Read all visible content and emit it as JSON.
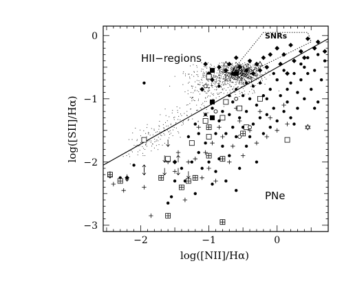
{
  "chart_data": {
    "type": "scatter",
    "title": "",
    "xlabel": "log([NII]/Hα)",
    "ylabel": "log([SII]/Hα)",
    "xlim": [
      -2.55,
      0.75
    ],
    "ylim": [
      -3.1,
      0.15
    ],
    "xticks": [
      -2,
      -1,
      0
    ],
    "xtick_labels": [
      "−2",
      "−1",
      "0"
    ],
    "yticks": [
      0,
      -1,
      -2,
      -3
    ],
    "ytick_labels": [
      "0",
      "−1",
      "−2",
      "−3"
    ],
    "grid": false,
    "legend": "none",
    "annotations": {
      "hii_label": "HII−regions",
      "snr_label": "SNRs",
      "pne_label": "PNe"
    },
    "dividing_line": {
      "x": [
        -2.55,
        0.75
      ],
      "y": [
        -2.05,
        -0.05
      ]
    },
    "snr_box": [
      [
        -0.65,
        -0.55
      ],
      [
        -0.2,
        0.05
      ],
      [
        0.45,
        0.05
      ],
      [
        0.5,
        -0.1
      ],
      [
        -0.35,
        -0.55
      ]
    ],
    "hii_cloud": {
      "description_points": 1400,
      "center": [
        -0.55,
        -0.58
      ],
      "main_extent": [
        -1.1,
        0.0
      ],
      "tail_to": [
        -2.1,
        -1.9
      ]
    },
    "series": [
      {
        "name": "",
        "marker": "filled-circle",
        "points": [
          [
            -2.3,
            -2.25
          ],
          [
            -2.1,
            -2.05
          ],
          [
            -1.95,
            -0.75
          ],
          [
            -1.55,
            -2.55
          ],
          [
            -1.6,
            -2.65
          ],
          [
            -1.4,
            -2.4
          ],
          [
            -1.35,
            -2.3
          ],
          [
            -1.25,
            -2.0
          ],
          [
            -1.15,
            -1.85
          ],
          [
            -1.1,
            -2.1
          ],
          [
            -1.0,
            -1.45
          ],
          [
            -1.0,
            -2.0
          ],
          [
            -0.9,
            -1.55
          ],
          [
            -0.85,
            -1.35
          ],
          [
            -0.8,
            -1.75
          ],
          [
            -0.75,
            -1.55
          ],
          [
            -0.7,
            -1.25
          ],
          [
            -0.7,
            -1.9
          ],
          [
            -0.65,
            -1.05
          ],
          [
            -0.6,
            -1.6
          ],
          [
            -0.55,
            -1.3
          ],
          [
            -0.55,
            -2.1
          ],
          [
            -0.5,
            -0.95
          ],
          [
            -0.5,
            -1.45
          ],
          [
            -0.45,
            -1.75
          ],
          [
            -0.45,
            -1.2
          ],
          [
            -0.4,
            -1.0
          ],
          [
            -0.4,
            -1.6
          ],
          [
            -0.35,
            -0.8
          ],
          [
            -0.35,
            -1.4
          ],
          [
            -0.3,
            -1.1
          ],
          [
            -0.3,
            -2.0
          ],
          [
            -0.25,
            -1.3
          ],
          [
            -0.25,
            -0.75
          ],
          [
            -0.2,
            -1.55
          ],
          [
            -0.15,
            -1.0
          ],
          [
            -0.15,
            -1.25
          ],
          [
            -0.1,
            -0.85
          ],
          [
            -0.1,
            -1.45
          ],
          [
            -0.05,
            -1.15
          ],
          [
            0.0,
            -0.7
          ],
          [
            0.0,
            -1.35
          ],
          [
            0.05,
            -0.95
          ],
          [
            0.1,
            -1.2
          ],
          [
            0.1,
            -0.55
          ],
          [
            0.15,
            -1.05
          ],
          [
            0.2,
            -0.75
          ],
          [
            0.2,
            -1.3
          ],
          [
            0.25,
            -0.6
          ],
          [
            0.3,
            -0.9
          ],
          [
            0.3,
            -1.15
          ],
          [
            0.35,
            -0.45
          ],
          [
            0.35,
            -0.7
          ],
          [
            0.4,
            -1.0
          ],
          [
            0.45,
            -0.35
          ],
          [
            0.45,
            -0.6
          ],
          [
            0.5,
            -0.85
          ],
          [
            0.55,
            -0.55
          ],
          [
            0.6,
            -0.3
          ],
          [
            0.6,
            -1.05
          ],
          [
            0.65,
            -0.7
          ],
          [
            0.7,
            -0.4
          ],
          [
            -1.3,
            -1.6
          ],
          [
            -1.2,
            -1.4
          ],
          [
            -1.05,
            -1.7
          ],
          [
            -0.95,
            -1.15
          ],
          [
            -0.85,
            -1.95
          ],
          [
            -0.8,
            -1.2
          ],
          [
            -0.6,
            -0.85
          ],
          [
            -0.65,
            -1.45
          ],
          [
            -1.2,
            -2.5
          ],
          [
            -0.95,
            -2.35
          ],
          [
            -0.9,
            -2.15
          ],
          [
            -0.75,
            -2.3
          ],
          [
            -0.6,
            -2.45
          ],
          [
            -1.4,
            -2.1
          ],
          [
            -1.5,
            -2.3
          ],
          [
            -0.2,
            -0.95
          ],
          [
            0.15,
            -0.85
          ],
          [
            -0.05,
            -0.6
          ],
          [
            -1.05,
            -1.25
          ],
          [
            -1.15,
            -1.55
          ],
          [
            -0.7,
            -0.95
          ],
          [
            -0.45,
            -0.75
          ],
          [
            -0.85,
            -0.8
          ],
          [
            0.4,
            -0.5
          ],
          [
            0.55,
            -1.15
          ],
          [
            0.25,
            -1.4
          ]
        ]
      },
      {
        "name": "",
        "marker": "filled-diamond",
        "points": [
          [
            -0.55,
            -0.5
          ],
          [
            -0.45,
            -0.55
          ],
          [
            -0.35,
            -0.6
          ],
          [
            -0.3,
            -0.45
          ],
          [
            -0.25,
            -0.55
          ],
          [
            -0.2,
            -0.35
          ],
          [
            -0.15,
            -0.5
          ],
          [
            -0.1,
            -0.3
          ],
          [
            0.0,
            -0.2
          ],
          [
            0.05,
            -0.45
          ],
          [
            0.1,
            -0.3
          ],
          [
            0.2,
            -0.15
          ],
          [
            0.25,
            -0.4
          ],
          [
            0.35,
            -0.25
          ],
          [
            0.45,
            -0.05
          ],
          [
            0.55,
            -0.2
          ],
          [
            -0.7,
            -0.45
          ],
          [
            -0.65,
            -0.6
          ],
          [
            -0.75,
            -0.55
          ],
          [
            -0.85,
            -0.5
          ],
          [
            -1.0,
            -0.6
          ],
          [
            -1.1,
            -0.85
          ],
          [
            -0.95,
            -0.7
          ],
          [
            -0.6,
            -0.35
          ],
          [
            -0.4,
            -0.4
          ],
          [
            0.15,
            -0.6
          ],
          [
            0.4,
            -0.35
          ],
          [
            0.6,
            -0.1
          ],
          [
            0.7,
            -0.25
          ],
          [
            -1.05,
            -0.45
          ],
          [
            -2.2,
            -2.25
          ],
          [
            -1.5,
            -2.0
          ]
        ]
      },
      {
        "name": "",
        "marker": "plus",
        "points": [
          [
            -2.4,
            -2.35
          ],
          [
            -2.25,
            -2.45
          ],
          [
            -1.85,
            -2.85
          ],
          [
            -1.95,
            -2.4
          ],
          [
            -1.6,
            -2.0
          ],
          [
            -1.5,
            -2.15
          ],
          [
            -1.45,
            -1.85
          ],
          [
            -1.35,
            -2.6
          ],
          [
            -1.3,
            -2.0
          ],
          [
            -1.2,
            -1.95
          ],
          [
            -1.1,
            -2.25
          ],
          [
            -1.05,
            -1.85
          ],
          [
            -1.0,
            -2.1
          ],
          [
            -0.95,
            -1.7
          ],
          [
            -0.9,
            -2.3
          ],
          [
            -0.8,
            -1.6
          ],
          [
            -0.7,
            -2.0
          ],
          [
            -0.65,
            -1.75
          ],
          [
            -0.55,
            -1.35
          ],
          [
            -0.5,
            -1.9
          ],
          [
            -0.4,
            -1.5
          ],
          [
            -0.3,
            -1.7
          ],
          [
            -0.25,
            -1.2
          ],
          [
            -0.15,
            -1.6
          ],
          [
            -0.1,
            -1.3
          ],
          [
            0.0,
            -1.5
          ],
          [
            0.1,
            -1.1
          ],
          [
            0.15,
            -1.4
          ],
          [
            -1.15,
            -1.45
          ],
          [
            -0.85,
            -1.45
          ],
          [
            -0.6,
            -1.15
          ]
        ]
      },
      {
        "name": "",
        "marker": "open-square",
        "points": [
          [
            -1.95,
            -1.65
          ],
          [
            -1.6,
            -1.95
          ],
          [
            -1.25,
            -1.7
          ],
          [
            -1.0,
            -1.6
          ],
          [
            -0.8,
            -1.3
          ],
          [
            -0.75,
            -1.05
          ],
          [
            -0.45,
            -1.45
          ],
          [
            -0.55,
            -1.15
          ],
          [
            -0.25,
            -1.0
          ],
          [
            0.15,
            -1.65
          ],
          [
            -1.0,
            -0.65
          ],
          [
            -1.05,
            -1.35
          ]
        ]
      },
      {
        "name": "",
        "marker": "boxed-plus",
        "points": [
          [
            -2.45,
            -2.2
          ],
          [
            -2.3,
            -2.3
          ],
          [
            -1.6,
            -2.85
          ],
          [
            -1.7,
            -2.25
          ],
          [
            -1.3,
            -2.3
          ],
          [
            -1.2,
            -2.25
          ],
          [
            -1.4,
            -2.4
          ],
          [
            -1.0,
            -1.9
          ],
          [
            -0.8,
            -1.95
          ],
          [
            -0.8,
            -2.95
          ],
          [
            -1.0,
            -1.45
          ],
          [
            -0.5,
            -1.55
          ]
        ]
      },
      {
        "name": "",
        "marker": "filled-square",
        "points": [
          [
            -0.95,
            -1.05
          ],
          [
            -0.95,
            -1.3
          ],
          [
            -0.6,
            -0.6
          ],
          [
            -0.95,
            -0.55
          ]
        ]
      },
      {
        "name": "",
        "marker": "arrow-down",
        "points": [
          [
            -2.45,
            -2.2
          ],
          [
            -2.2,
            -2.25
          ],
          [
            -1.95,
            -2.15
          ],
          [
            -1.65,
            -1.95
          ],
          [
            -1.65,
            -2.15
          ],
          [
            -1.45,
            -2.15
          ],
          [
            -1.3,
            -2.2
          ],
          [
            -1.6,
            -1.7
          ]
        ]
      },
      {
        "name": "",
        "marker": "arrow-up",
        "points": [
          [
            -1.95,
            -2.1
          ],
          [
            -1.45,
            -1.95
          ]
        ]
      },
      {
        "name": "",
        "marker": "open-circle",
        "points": [
          [
            -1.05,
            -0.8
          ],
          [
            -0.4,
            -1.45
          ],
          [
            -0.55,
            -1.6
          ],
          [
            -0.6,
            -1.0
          ],
          [
            -0.9,
            -1.2
          ]
        ]
      },
      {
        "name": "",
        "marker": "open-triangle",
        "points": [
          [
            -0.75,
            -0.45
          ],
          [
            -0.25,
            -0.45
          ]
        ]
      },
      {
        "name": "",
        "marker": "cross",
        "points": [
          [
            -1.05,
            -1.25
          ]
        ]
      },
      {
        "name": "",
        "marker": "star",
        "points": [
          [
            0.45,
            -1.45
          ]
        ]
      }
    ]
  }
}
